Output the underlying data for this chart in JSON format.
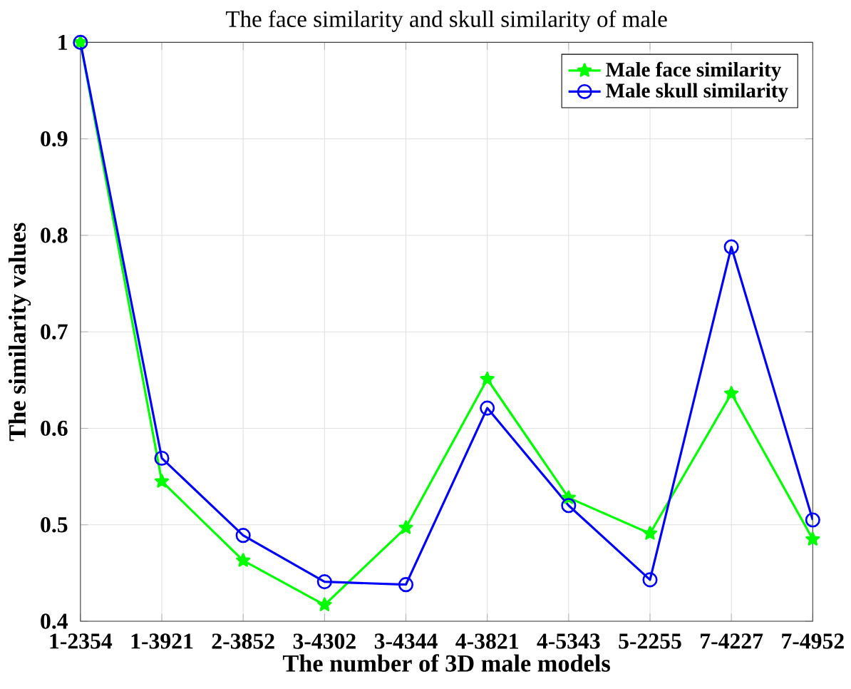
{
  "chart_data": {
    "type": "line",
    "title": "The face similarity and skull similarity of male",
    "xlabel": "The number of 3D male models",
    "ylabel": "The similarity values",
    "categories": [
      "1-2354",
      "1-3921",
      "2-3852",
      "3-4302",
      "3-4344",
      "4-3821",
      "4-5343",
      "5-2255",
      "7-4227",
      "7-4952"
    ],
    "series": [
      {
        "name": "Male face similarity",
        "color": "#00ff00",
        "marker": "star",
        "values": [
          1,
          0.545,
          0.463,
          0.417,
          0.497,
          0.651,
          0.528,
          0.491,
          0.636,
          0.485
        ]
      },
      {
        "name": "Male skull similarity",
        "color": "#0000ff",
        "marker": "circle",
        "values": [
          1,
          0.569,
          0.489,
          0.441,
          0.438,
          0.621,
          0.52,
          0.443,
          0.788,
          0.505
        ]
      }
    ],
    "ylim": [
      0.4,
      1
    ],
    "yticks": [
      0.4,
      0.5,
      0.6,
      0.7,
      0.8,
      0.9,
      1
    ],
    "grid": true,
    "legend": "top right",
    "line_style": "solid"
  }
}
